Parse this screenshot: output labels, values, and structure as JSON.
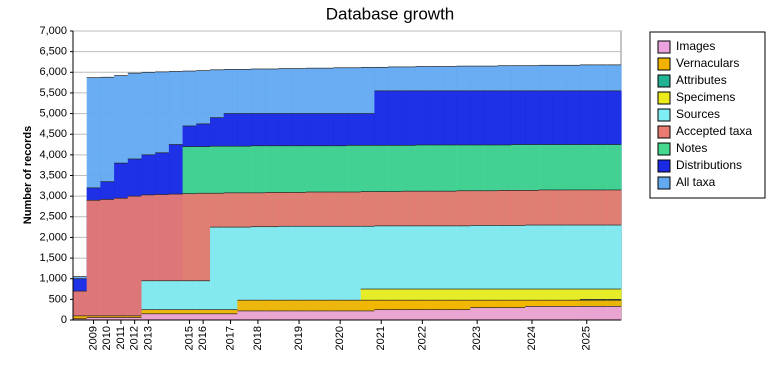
{
  "chart_data": {
    "type": "area",
    "title": "Database growth",
    "y_label": "Number of records",
    "categories": [
      null,
      "2009",
      "2010",
      "2011",
      "2012",
      "2013",
      null,
      null,
      "2015",
      "2016",
      null,
      "2017",
      null,
      "2018",
      null,
      null,
      "2019",
      null,
      null,
      "2020",
      null,
      null,
      "2021",
      null,
      null,
      "2022",
      null,
      null,
      null,
      "2023",
      null,
      null,
      null,
      "2024",
      null,
      null,
      null,
      "2025",
      null,
      null
    ],
    "series": [
      {
        "name": "Images",
        "color": "#eaa3dc",
        "values": [
          30,
          60,
          60,
          60,
          60,
          150,
          150,
          150,
          150,
          150,
          150,
          150,
          220,
          220,
          220,
          220,
          220,
          220,
          220,
          220,
          220,
          220,
          250,
          250,
          250,
          250,
          250,
          250,
          250,
          300,
          300,
          300,
          300,
          330,
          330,
          330,
          330,
          330,
          330,
          330
        ]
      },
      {
        "name": "Vernaculars",
        "color": "#f2b400",
        "values": [
          100,
          100,
          100,
          100,
          100,
          250,
          250,
          250,
          250,
          250,
          250,
          250,
          480,
          480,
          480,
          480,
          480,
          480,
          480,
          480,
          480,
          480,
          480,
          480,
          480,
          480,
          480,
          480,
          480,
          480,
          480,
          480,
          480,
          480,
          480,
          480,
          480,
          480,
          480,
          480
        ]
      },
      {
        "name": "Attributes",
        "color": "#22b294",
        "values": [
          0,
          0,
          0,
          0,
          0,
          0,
          0,
          0,
          0,
          0,
          0,
          0,
          0,
          0,
          0,
          0,
          0,
          0,
          0,
          0,
          0,
          0,
          0,
          0,
          0,
          0,
          0,
          0,
          0,
          0,
          0,
          0,
          0,
          0,
          0,
          0,
          0,
          500,
          500,
          500
        ]
      },
      {
        "name": "Specimens",
        "color": "#ecec1c",
        "values": [
          0,
          0,
          0,
          0,
          0,
          0,
          0,
          0,
          0,
          0,
          0,
          0,
          0,
          0,
          0,
          0,
          0,
          0,
          0,
          0,
          0,
          750,
          750,
          750,
          750,
          750,
          750,
          750,
          750,
          750,
          750,
          750,
          750,
          750,
          750,
          750,
          750,
          750,
          750,
          750
        ]
      },
      {
        "name": "Sources",
        "color": "#7eeef5",
        "values": [
          0,
          0,
          0,
          0,
          0,
          950,
          950,
          950,
          950,
          950,
          2250,
          2250,
          2250,
          2260,
          2260,
          2270,
          2270,
          2270,
          2270,
          2270,
          2270,
          2270,
          2280,
          2280,
          2280,
          2280,
          2280,
          2280,
          2280,
          2290,
          2290,
          2290,
          2290,
          2300,
          2300,
          2300,
          2300,
          2300,
          2300,
          2300
        ]
      },
      {
        "name": "Accepted taxa",
        "color": "#e87a72",
        "values": [
          700,
          2900,
          2920,
          2950,
          3000,
          3030,
          3040,
          3050,
          3060,
          3070,
          3070,
          3080,
          3080,
          3080,
          3090,
          3090,
          3090,
          3100,
          3100,
          3100,
          3100,
          3110,
          3110,
          3110,
          3120,
          3120,
          3120,
          3120,
          3130,
          3130,
          3130,
          3140,
          3140,
          3140,
          3150,
          3150,
          3150,
          3150,
          3150,
          3150
        ]
      },
      {
        "name": "Notes",
        "color": "#44d98e",
        "values": [
          0,
          0,
          0,
          0,
          0,
          0,
          0,
          0,
          4200,
          4200,
          4210,
          4210,
          4210,
          4220,
          4220,
          4220,
          4220,
          4220,
          4220,
          4220,
          4230,
          4230,
          4230,
          4230,
          4230,
          4240,
          4240,
          4240,
          4240,
          4240,
          4240,
          4240,
          4250,
          4250,
          4250,
          4250,
          4250,
          4250,
          4250,
          4250
        ]
      },
      {
        "name": "Distributions",
        "color": "#1b2ae6",
        "values": [
          1000,
          3200,
          3350,
          3800,
          3900,
          4000,
          4050,
          4250,
          4700,
          4750,
          4900,
          5000,
          5000,
          5000,
          5000,
          5000,
          5000,
          5000,
          5000,
          5000,
          5000,
          5000,
          5550,
          5550,
          5550,
          5550,
          5550,
          5550,
          5550,
          5550,
          5550,
          5550,
          5550,
          5550,
          5550,
          5550,
          5550,
          5550,
          5550,
          5550
        ]
      },
      {
        "name": "All taxa",
        "color": "#62a9f2",
        "values": [
          1050,
          5870,
          5880,
          5920,
          5980,
          6000,
          6010,
          6020,
          6030,
          6040,
          6060,
          6070,
          6070,
          6080,
          6080,
          6090,
          6090,
          6100,
          6100,
          6110,
          6110,
          6120,
          6120,
          6130,
          6130,
          6140,
          6140,
          6140,
          6150,
          6150,
          6150,
          6160,
          6160,
          6160,
          6170,
          6170,
          6170,
          6180,
          6180,
          6180
        ]
      }
    ],
    "ylim": [
      0,
      7000
    ],
    "yticks": [
      0,
      500,
      {
        "value": 1000,
        "label": "1,000"
      },
      {
        "value": 1500,
        "label": "1,500"
      },
      {
        "value": 2000,
        "label": "2,000"
      },
      {
        "value": 2500,
        "label": "2,500"
      },
      {
        "value": 3000,
        "label": "3,000"
      },
      {
        "value": 3500,
        "label": "3,500"
      },
      {
        "value": 4000,
        "label": "4,000"
      },
      {
        "value": 4500,
        "label": "4,500"
      },
      {
        "value": 5000,
        "label": "5,000"
      },
      {
        "value": 5500,
        "label": "5,500"
      },
      {
        "value": 6000,
        "label": "6,000"
      },
      {
        "value": 6500,
        "label": "6,500"
      },
      {
        "value": 7000,
        "label": "7,000"
      }
    ],
    "grid": true
  }
}
